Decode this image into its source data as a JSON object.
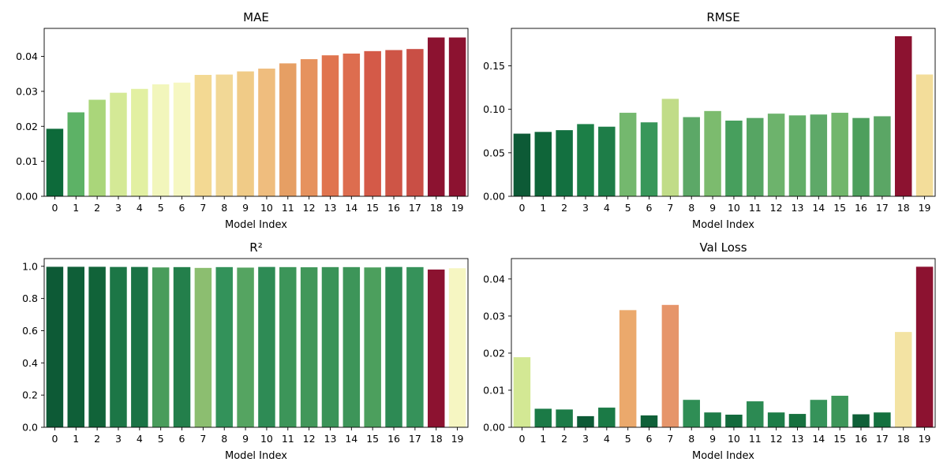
{
  "chart_data": [
    {
      "type": "bar",
      "title": "MAE",
      "xlabel": "Model Index",
      "ylabel": "",
      "categories": [
        "0",
        "1",
        "2",
        "3",
        "4",
        "5",
        "6",
        "7",
        "8",
        "9",
        "10",
        "11",
        "12",
        "13",
        "14",
        "15",
        "16",
        "17",
        "18",
        "19"
      ],
      "values": [
        0.0193,
        0.024,
        0.0276,
        0.0296,
        0.0307,
        0.032,
        0.0325,
        0.0347,
        0.0348,
        0.0357,
        0.0365,
        0.038,
        0.0392,
        0.0403,
        0.0408,
        0.0415,
        0.0418,
        0.0421,
        0.0454,
        0.0454
      ],
      "colors": [
        "#0d6a3a",
        "#5db266",
        "#aad67a",
        "#d4e996",
        "#e2f0a2",
        "#f2f6bc",
        "#f6f7c2",
        "#f3d993",
        "#f2d896",
        "#f0cb87",
        "#efbd7e",
        "#e69f64",
        "#e6925e",
        "#e0744f",
        "#dd6d4f",
        "#d45a48",
        "#ce5546",
        "#c94f45",
        "#8c1230",
        "#8c1230"
      ],
      "ylim": [
        0,
        0.048
      ],
      "yticks": [
        "0.00",
        "0.01",
        "0.02",
        "0.03",
        "0.04"
      ],
      "ytick_values": [
        0,
        0.01,
        0.02,
        0.03,
        0.04
      ],
      "grid": false
    },
    {
      "type": "bar",
      "title": "RMSE",
      "xlabel": "Model Index",
      "ylabel": "",
      "categories": [
        "0",
        "1",
        "2",
        "3",
        "4",
        "5",
        "6",
        "7",
        "8",
        "9",
        "10",
        "11",
        "12",
        "13",
        "14",
        "15",
        "16",
        "17",
        "18",
        "19"
      ],
      "values": [
        0.072,
        0.074,
        0.076,
        0.083,
        0.08,
        0.096,
        0.085,
        0.112,
        0.091,
        0.098,
        0.087,
        0.09,
        0.095,
        0.093,
        0.094,
        0.096,
        0.09,
        0.092,
        0.184,
        0.14
      ],
      "colors": [
        "#0d5a36",
        "#0f6539",
        "#137040",
        "#1c7f47",
        "#1e7d48",
        "#74b86e",
        "#38975a",
        "#c1dc88",
        "#5ca867",
        "#7cbb6e",
        "#479f5d",
        "#56a563",
        "#6db36c",
        "#63ae68",
        "#5ea968",
        "#72b66c",
        "#4e9f5d",
        "#5ba665",
        "#8c1230",
        "#f3dd9a"
      ],
      "ylim": [
        0,
        0.193
      ],
      "yticks": [
        "0.00",
        "0.05",
        "0.10",
        "0.15"
      ],
      "ytick_values": [
        0,
        0.05,
        0.1,
        0.15
      ],
      "grid": false
    },
    {
      "type": "bar",
      "title": "R²",
      "xlabel": "Model Index",
      "ylabel": "",
      "categories": [
        "0",
        "1",
        "2",
        "3",
        "4",
        "5",
        "6",
        "7",
        "8",
        "9",
        "10",
        "11",
        "12",
        "13",
        "14",
        "15",
        "16",
        "17",
        "18",
        "19"
      ],
      "values": [
        0.997,
        0.997,
        0.997,
        0.996,
        0.996,
        0.993,
        0.995,
        0.99,
        0.995,
        0.992,
        0.996,
        0.995,
        0.994,
        0.995,
        0.995,
        0.993,
        0.996,
        0.995,
        0.98,
        0.988
      ],
      "colors": [
        "#0d5a36",
        "#0f5f38",
        "#116339",
        "#1c7646",
        "#1a7345",
        "#499c5b",
        "#237f4b",
        "#8cbe70",
        "#33925a",
        "#55a461",
        "#2e8b55",
        "#3c9559",
        "#41975a",
        "#3a9358",
        "#3d9559",
        "#4c9f5d",
        "#2d8a54",
        "#36925a",
        "#8c1230",
        "#f6f6c2"
      ],
      "ylim": [
        0,
        1.048
      ],
      "yticks": [
        "0.0",
        "0.2",
        "0.4",
        "0.6",
        "0.8",
        "1.0"
      ],
      "ytick_values": [
        0,
        0.2,
        0.4,
        0.6,
        0.8,
        1.0
      ],
      "grid": false
    },
    {
      "type": "bar",
      "title": "Val Loss",
      "xlabel": "Model Index",
      "ylabel": "",
      "categories": [
        "0",
        "1",
        "2",
        "3",
        "4",
        "5",
        "6",
        "7",
        "8",
        "9",
        "10",
        "11",
        "12",
        "13",
        "14",
        "15",
        "16",
        "17",
        "18",
        "19"
      ],
      "values": [
        0.0189,
        0.005,
        0.0048,
        0.003,
        0.0053,
        0.0316,
        0.0032,
        0.033,
        0.0074,
        0.004,
        0.0034,
        0.007,
        0.004,
        0.0036,
        0.0074,
        0.0085,
        0.0035,
        0.004,
        0.0257,
        0.0433
      ],
      "colors": [
        "#d3e894",
        "#1b7a46",
        "#1c7b47",
        "#0d5a36",
        "#1b7a46",
        "#eba96c",
        "#0f6038",
        "#e6956a",
        "#2f8e55",
        "#1e7c48",
        "#136a3c",
        "#2c8a53",
        "#1d7d48",
        "#17713f",
        "#36935a",
        "#3d9659",
        "#0f6038",
        "#15713f",
        "#f3e3a3",
        "#8c1230"
      ],
      "ylim": [
        0,
        0.0455
      ],
      "yticks": [
        "0.00",
        "0.01",
        "0.02",
        "0.03",
        "0.04"
      ],
      "ytick_values": [
        0,
        0.01,
        0.02,
        0.03,
        0.04
      ],
      "grid": false
    }
  ]
}
